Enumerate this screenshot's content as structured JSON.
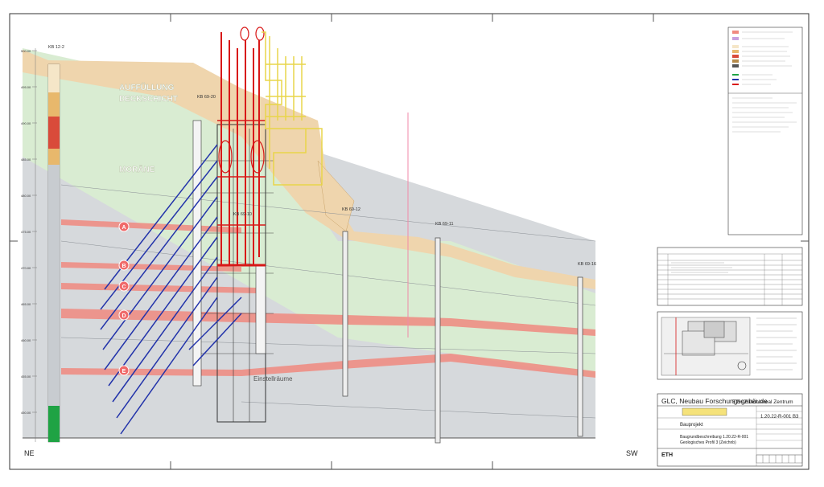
{
  "titleblock": {
    "project_title": "GLC, Neubau Forschungsgebäude",
    "client": "ETH Zürich Areal Zentrum",
    "phase": "Bauprojekt",
    "doc_number": "1.20.22-R-001 B3",
    "drawing_title_1": "Baugrundbeschreibung 1.20.22-R-001",
    "drawing_title_2": "Geologisches Profil 3 (Zeichnb)",
    "logo": "ETH"
  },
  "orientation": {
    "left": "NE",
    "right": "SW"
  },
  "boreholes": [
    {
      "id": "KB 12-2"
    },
    {
      "id": "KB 69-20"
    },
    {
      "id": "KB 69-10"
    },
    {
      "id": "KB 69-12"
    },
    {
      "id": "KB 69-11"
    },
    {
      "id": "KB 69-16"
    }
  ],
  "layer_labels": {
    "fill": "AUFFÜLLUNG",
    "topsoil": "DECKSCHICHT",
    "moraine": "MORÄNE",
    "lower": "Einstellräume"
  },
  "markers": [
    "A",
    "B",
    "C",
    "D",
    "E"
  ],
  "elevations": [
    "500.00",
    "495.00",
    "490.00",
    "485.00",
    "480.00",
    "475.00",
    "470.00",
    "465.00",
    "460.00",
    "455.00",
    "450.00"
  ],
  "colors": {
    "sand": "#efd5ad",
    "green": "#d9ecd2",
    "grey": "#d6d9dc",
    "red": "#f08a80",
    "anchor": "#2233aa",
    "pile": "#d81818",
    "yellow": "#e9d54a"
  }
}
